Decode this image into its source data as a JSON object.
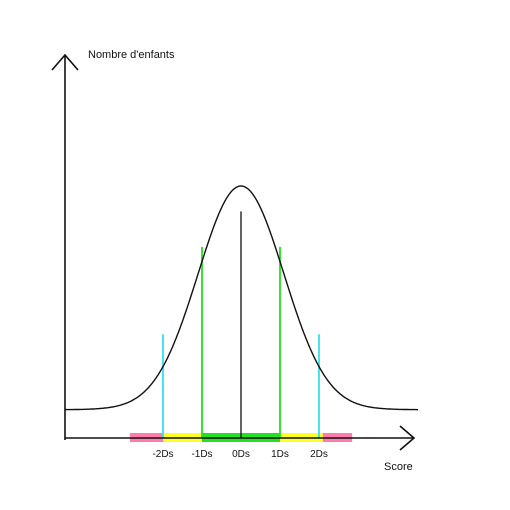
{
  "y_axis_label": "Nombre d'enfants",
  "x_axis_label": "Score",
  "ticks": [
    {
      "value": -2,
      "label": "-2Ds",
      "line_color": "#33e0f0",
      "line_height": 0.38
    },
    {
      "value": -1,
      "label": "-1Ds",
      "line_color": "#22e022",
      "line_height": 0.7
    },
    {
      "value": 0,
      "label": "0Ds",
      "line_color": "#111111",
      "line_height": 0.83
    },
    {
      "value": 1,
      "label": "1Ds",
      "line_color": "#22e022",
      "line_height": 0.7
    },
    {
      "value": 2,
      "label": "2Ds",
      "line_color": "#33e0f0",
      "line_height": 0.38
    }
  ],
  "zones": [
    {
      "from": -2.85,
      "to": -2,
      "color": "#ff7bab"
    },
    {
      "from": -2,
      "to": -1,
      "color": "#ffff22"
    },
    {
      "from": -1,
      "to": 1,
      "color": "#22e022"
    },
    {
      "from": 1,
      "to": 2,
      "color": "#ffff22"
    },
    {
      "from": 2,
      "to": 2.1,
      "color": "#ffff22"
    },
    {
      "from": 2.1,
      "to": 2.85,
      "color": "#ff7bab"
    }
  ],
  "colors": {
    "axis": "#111111",
    "curve": "#111111"
  }
}
